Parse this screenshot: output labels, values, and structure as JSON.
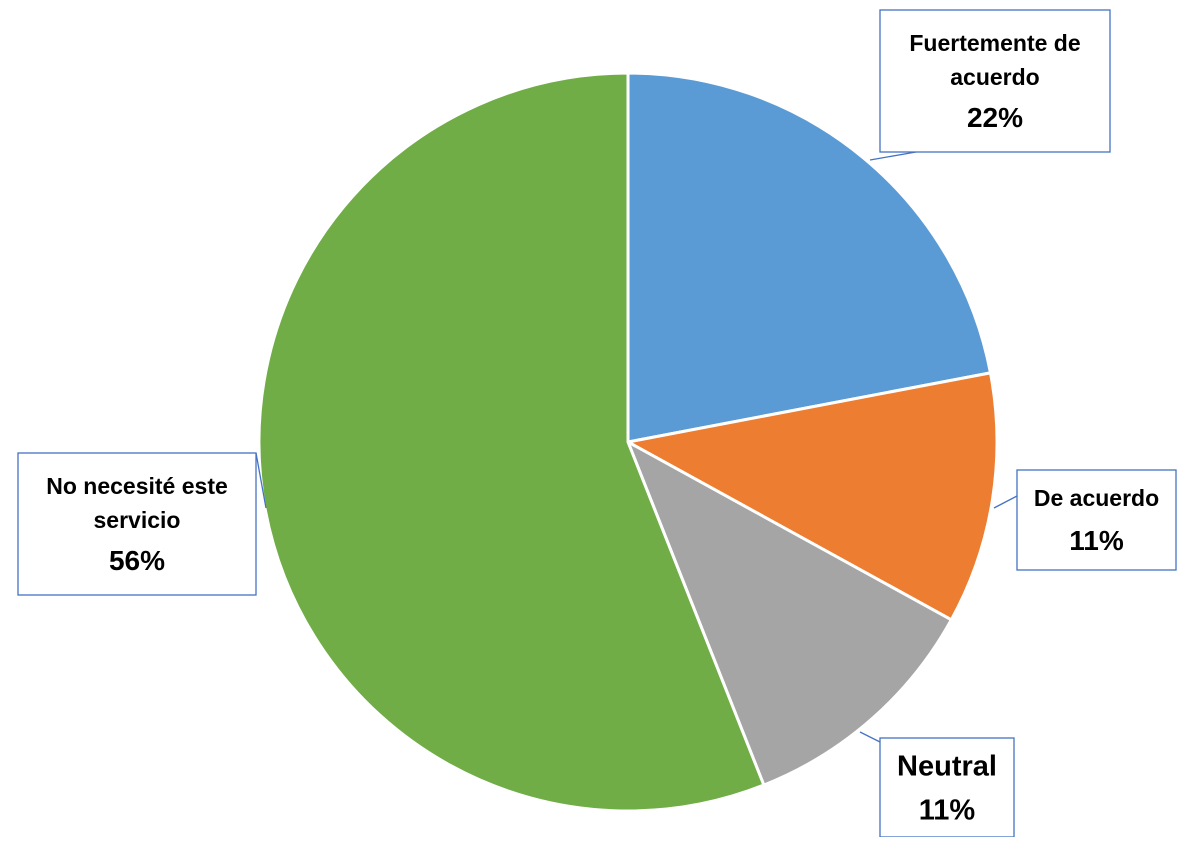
{
  "chart_data": {
    "type": "pie",
    "title": "",
    "start_angle_deg": 0,
    "direction": "clockwise",
    "slices": [
      {
        "label_lines": [
          "Fuertemente de",
          "acuerdo"
        ],
        "percent_label": "22%",
        "value": 22,
        "color": "#5B9BD5"
      },
      {
        "label_lines": [
          "De acuerdo"
        ],
        "percent_label": "11%",
        "value": 11,
        "color": "#ED7D31"
      },
      {
        "label_lines": [
          "Neutral"
        ],
        "percent_label": "11%",
        "value": 11,
        "color": "#A5A5A5"
      },
      {
        "label_lines": [
          "No necesité este",
          "servicio"
        ],
        "percent_label": "56%",
        "value": 56,
        "color": "#70AD47"
      }
    ],
    "slice_border_color": "#FFFFFF",
    "callout_border_color": "#4472C4"
  }
}
